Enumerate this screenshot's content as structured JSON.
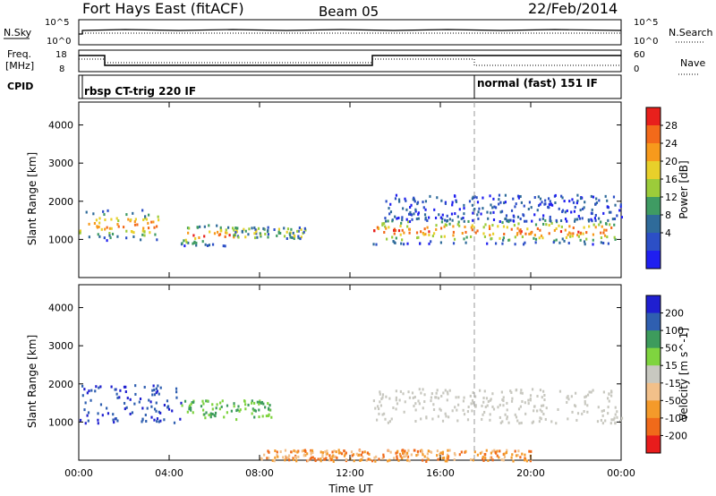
{
  "header": {
    "station": "Fort Hays East (fitACF)",
    "beam": "Beam 05",
    "date": "22/Feb/2014"
  },
  "top_panel": {
    "left_label": "N.Sky",
    "right_label": "N.Search",
    "left_ticks": [
      "10^5",
      "10^0"
    ],
    "right_ticks": [
      "10^5",
      "10^0"
    ]
  },
  "freq_panel": {
    "left_label_line1": "Freq.",
    "left_label_line2": "[MHz]",
    "right_label": "Nave",
    "left_ticks": [
      "18",
      "8"
    ],
    "right_ticks": [
      "60",
      "0"
    ]
  },
  "cpid_panel": {
    "label": "CPID",
    "mode1": "rbsp CT-trig 220 IF",
    "mode2": "normal (fast) 151 IF",
    "mode_change_hour": 17.7
  },
  "chart_data": [
    {
      "type": "heatmap",
      "title": "Power",
      "ylabel": "Slant Range [km]",
      "xlabel": "Time UT",
      "xlim": [
        0,
        24
      ],
      "ylim": [
        0,
        4600
      ],
      "x_ticks": [
        "00:00",
        "04:00",
        "08:00",
        "12:00",
        "16:00",
        "20:00",
        "00:00"
      ],
      "y_ticks": [
        "1000",
        "2000",
        "3000",
        "4000"
      ],
      "colorbar": {
        "label": "Power [dB]",
        "ticks": [
          "28",
          "24",
          "20",
          "16",
          "12",
          "8",
          "4"
        ],
        "colors": [
          "#e8201c",
          "#f36a1a",
          "#f79a1c",
          "#e8d02a",
          "#9ccc3a",
          "#3f9b63",
          "#2f6b9a",
          "#2c4fc6",
          "#1f1ff0"
        ]
      },
      "echo_regions": [
        {
          "t": [
            0.0,
            3.5
          ],
          "r": [
            1000,
            1800
          ],
          "level": "high"
        },
        {
          "t": [
            4.5,
            7.0
          ],
          "r": [
            850,
            1450
          ],
          "level": "high"
        },
        {
          "t": [
            6.8,
            10.0
          ],
          "r": [
            1050,
            1350
          ],
          "level": "medium"
        },
        {
          "t": [
            13.0,
            24.0
          ],
          "r": [
            900,
            1600
          ],
          "level": "high"
        },
        {
          "t": [
            13.5,
            24.0
          ],
          "r": [
            1500,
            2200
          ],
          "level": "low"
        }
      ]
    },
    {
      "type": "heatmap",
      "title": "Velocity",
      "ylabel": "Slant Range [km]",
      "xlabel": "Time UT",
      "xlim": [
        0,
        24
      ],
      "ylim": [
        0,
        4600
      ],
      "x_ticks": [
        "00:00",
        "04:00",
        "08:00",
        "12:00",
        "16:00",
        "20:00",
        "00:00"
      ],
      "y_ticks": [
        "1000",
        "2000",
        "3000",
        "4000"
      ],
      "colorbar": {
        "label": "Velocity [m s^-1]",
        "ticks": [
          "200",
          "100",
          "50",
          "15",
          "-15",
          "-50",
          "-100",
          "-200"
        ],
        "colors": [
          "#1f1fd0",
          "#2f5fb0",
          "#3d9b5c",
          "#7fd43f",
          "#c8c8c0",
          "#f2c08a",
          "#f49a2a",
          "#f06a1a",
          "#e81c1c"
        ]
      },
      "echo_regions": [
        {
          "t": [
            0.0,
            4.5
          ],
          "r": [
            1000,
            2000
          ],
          "level": "positive"
        },
        {
          "t": [
            4.5,
            8.5
          ],
          "r": [
            1100,
            1600
          ],
          "level": "weak-positive"
        },
        {
          "t": [
            13.0,
            24.0
          ],
          "r": [
            1000,
            1900
          ],
          "level": "near-zero"
        },
        {
          "t": [
            8.0,
            20.0
          ],
          "r": [
            0,
            300
          ],
          "level": "negative"
        }
      ]
    }
  ]
}
